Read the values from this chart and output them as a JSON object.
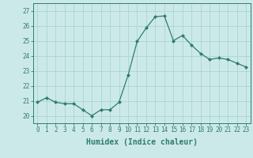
{
  "x": [
    0,
    1,
    2,
    3,
    4,
    5,
    6,
    7,
    8,
    9,
    10,
    11,
    12,
    13,
    14,
    15,
    16,
    17,
    18,
    19,
    20,
    21,
    22,
    23
  ],
  "y": [
    20.9,
    21.2,
    20.9,
    20.8,
    20.8,
    20.4,
    20.0,
    20.4,
    20.4,
    20.9,
    22.7,
    24.95,
    25.85,
    26.6,
    26.65,
    25.0,
    25.35,
    24.7,
    24.15,
    23.75,
    23.85,
    23.75,
    23.5,
    23.25
  ],
  "line_color": "#2e7d6e",
  "marker": "D",
  "marker_size": 2.0,
  "bg_color": "#cce9e9",
  "grid_color": "#aad4d4",
  "xlabel": "Humidex (Indice chaleur)",
  "xlim": [
    -0.5,
    23.5
  ],
  "ylim": [
    19.5,
    27.5
  ],
  "yticks": [
    20,
    21,
    22,
    23,
    24,
    25,
    26,
    27
  ],
  "xticks": [
    0,
    1,
    2,
    3,
    4,
    5,
    6,
    7,
    8,
    9,
    10,
    11,
    12,
    13,
    14,
    15,
    16,
    17,
    18,
    19,
    20,
    21,
    22,
    23
  ],
  "tick_color": "#2e7d6e",
  "label_color": "#2e7d6e",
  "xlabel_fontsize": 7.0,
  "tick_fontsize": 5.5,
  "linewidth": 0.9
}
